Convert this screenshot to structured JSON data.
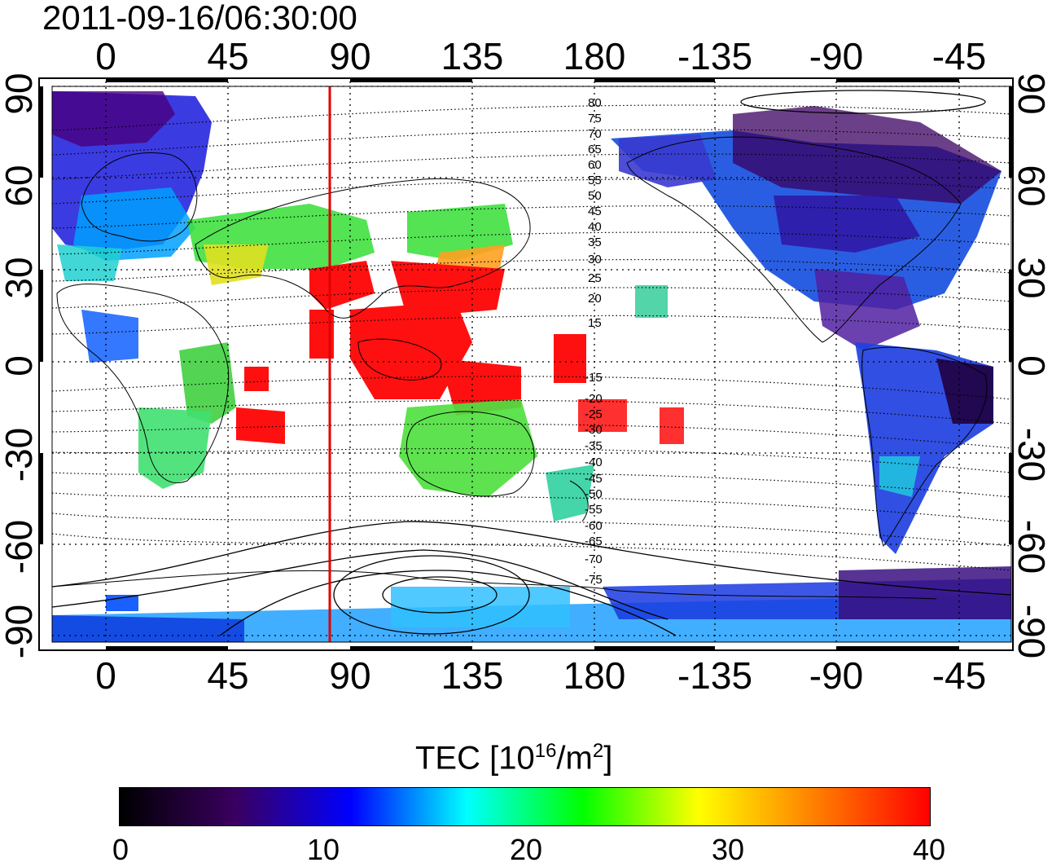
{
  "title": "2011-09-16/06:30:00",
  "axes": {
    "lon_ticks": [
      "0",
      "45",
      "90",
      "135",
      "180",
      "-135",
      "-90",
      "-45"
    ],
    "lat_ticks": [
      "90",
      "60",
      "30",
      "0",
      "-30",
      "-60",
      "-90"
    ]
  },
  "contour_labels_north": [
    "80",
    "75",
    "70",
    "65",
    "60",
    "55",
    "50",
    "45",
    "40",
    "35",
    "30",
    "25",
    "20",
    "15"
  ],
  "contour_labels_south": [
    "-15",
    "-20",
    "-25",
    "-30",
    "-35",
    "-40",
    "-45",
    "-50",
    "-55",
    "-60",
    "-65",
    "-70",
    "-75"
  ],
  "marker": {
    "color": "#e00000",
    "longitude": 82
  },
  "colorbar": {
    "title_main": "TEC  [10",
    "title_sup1": "16",
    "title_mid": "/m",
    "title_sup2": "2",
    "title_end": "]",
    "ticks": [
      "0",
      "10",
      "20",
      "30",
      "40"
    ],
    "range": [
      0,
      40
    ],
    "colors": [
      "#000000",
      "#3a0060",
      "#0000ff",
      "#00ffff",
      "#00ff00",
      "#ffff00",
      "#ff8000",
      "#ff0000"
    ]
  },
  "colors": {
    "background": "#ffffff",
    "frame": "#000000",
    "grid": "#000000"
  }
}
